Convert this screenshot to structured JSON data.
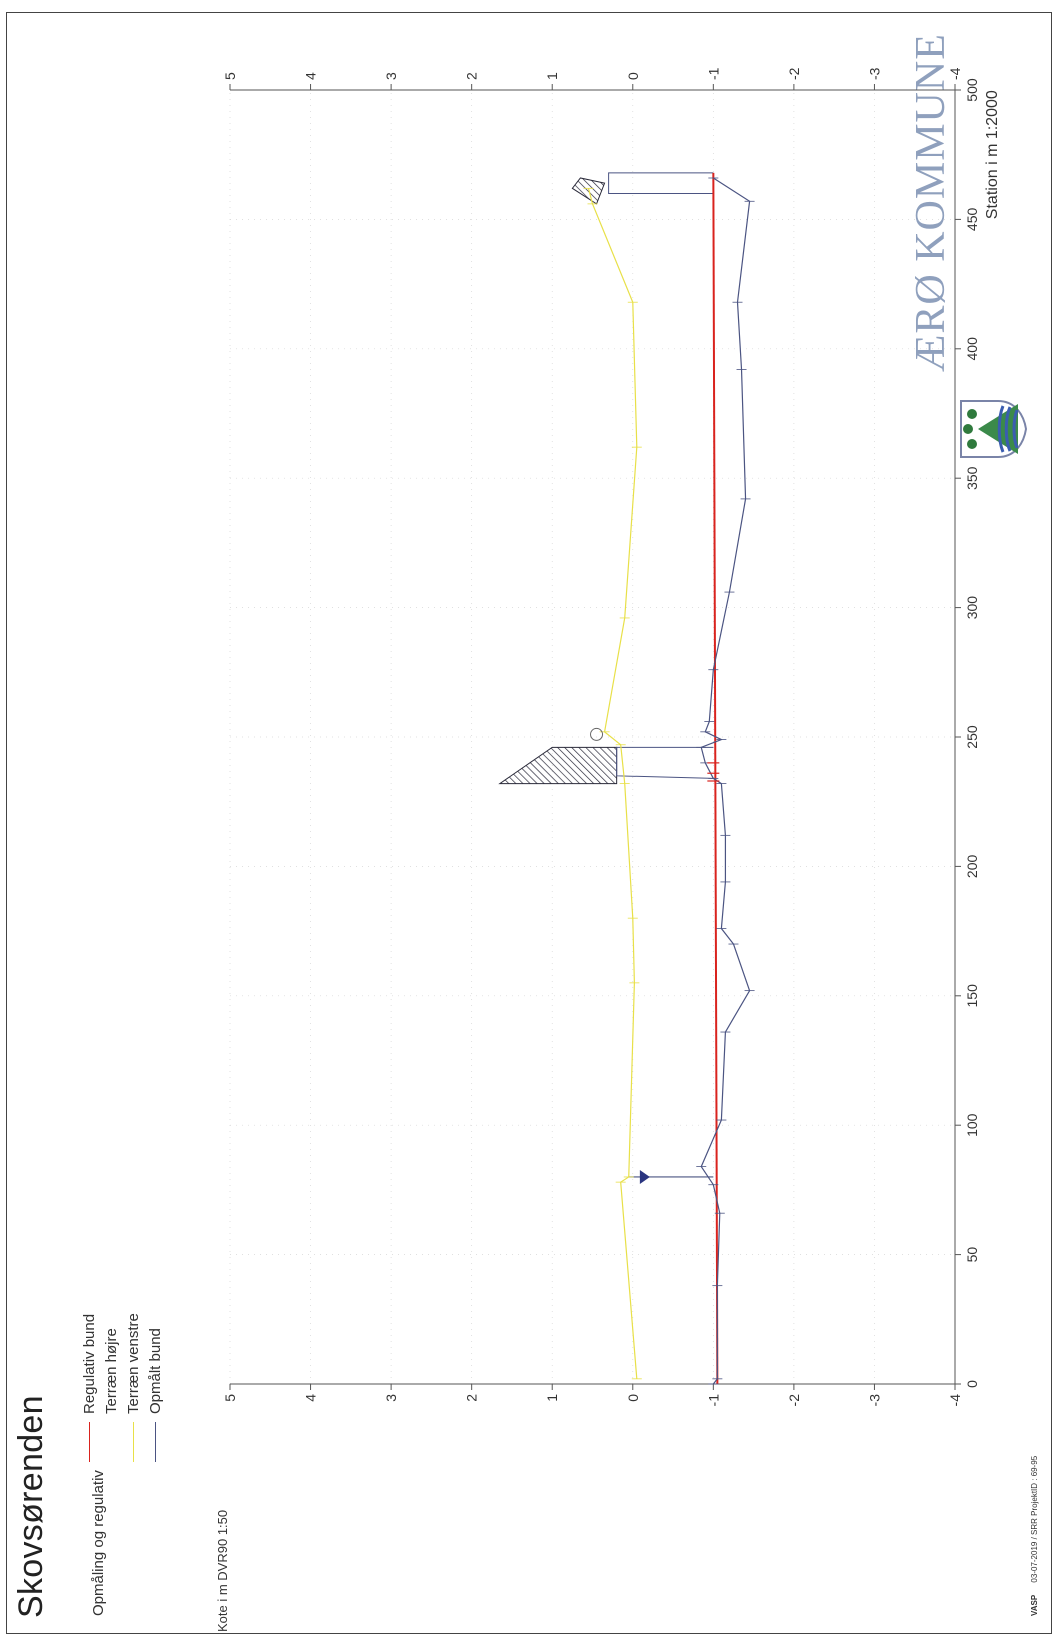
{
  "header": {
    "title": "Skovsørenden",
    "subtitle": "Opmåling og regulativ",
    "brand": "ÆRØ KOMMUNE"
  },
  "footer": {
    "software": "VASP",
    "info": "03-07-2019 / SRR   ProjektID : 69-95"
  },
  "colors": {
    "regulativ": "#d9231e",
    "terraen_hojre": "#d6d6d6",
    "terraen_venstre": "#e8e048",
    "opmaalt": "#4b5482",
    "structure": "#2a2a3a"
  },
  "chart_data": {
    "type": "line",
    "title": "Skovsørenden",
    "subtitle": "Opmåling og regulativ",
    "xlabel": "Station i m  1:2000",
    "ylabel": "Kote i m DVR90 1:50",
    "xlim": [
      0,
      500
    ],
    "ylim": [
      -4,
      5
    ],
    "xticks": [
      0,
      50,
      100,
      150,
      200,
      250,
      300,
      350,
      400,
      450,
      500
    ],
    "yticks": [
      5,
      4,
      3,
      2,
      1,
      0,
      -1,
      -2,
      -3,
      -4
    ],
    "legend": [
      "Regulativ bund",
      "Terræn højre",
      "Terræn venstre",
      "Opmålt bund"
    ],
    "series": [
      {
        "name": "Regulativ bund",
        "x": [
          0,
          468
        ],
        "y": [
          -1.05,
          -1.0
        ]
      },
      {
        "name": "Terræn venstre",
        "x": [
          2,
          78,
          80,
          155,
          180,
          232,
          247,
          252,
          296,
          362,
          418,
          456,
          462
        ],
        "y": [
          -0.05,
          0.15,
          0.05,
          -0.02,
          0.0,
          0.1,
          0.15,
          0.35,
          0.1,
          -0.05,
          0.0,
          0.5,
          0.55
        ]
      },
      {
        "name": "Opmålt bund",
        "x": [
          0,
          2,
          38,
          66,
          77,
          84,
          102,
          136,
          152,
          170,
          176,
          194,
          212,
          232,
          234,
          240,
          246,
          249,
          252,
          256,
          276,
          306,
          342,
          392,
          418,
          457,
          466
        ],
        "y": [
          -1.0,
          -1.05,
          -1.05,
          -1.08,
          -1.0,
          -0.85,
          -1.1,
          -1.15,
          -1.45,
          -1.25,
          -1.1,
          -1.15,
          -1.15,
          -1.1,
          -1.0,
          -0.9,
          -0.85,
          -1.1,
          -0.9,
          -0.95,
          -1.0,
          -1.2,
          -1.4,
          -1.35,
          -1.3,
          -1.45,
          -1.0
        ]
      },
      {
        "name": "Terræn højre",
        "x": [
          0,
          500
        ],
        "y": [
          null,
          null
        ]
      }
    ],
    "annotations": {
      "triangle_marker": {
        "x": 80,
        "y": -0.15
      },
      "circle_marker": {
        "x": 251,
        "y": 0.45
      }
    }
  }
}
